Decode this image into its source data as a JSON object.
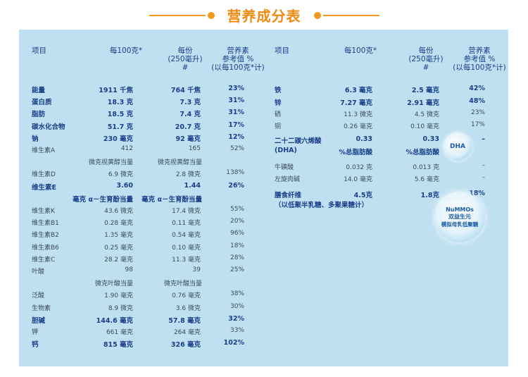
{
  "title": "营养成分表",
  "colors": {
    "accent": "#f39a1e",
    "panel": "#bfe0f0",
    "header_text": "#1a3f8a"
  },
  "left_headers": {
    "item": "项目",
    "per100": "每100克*",
    "per_serving": "每份\n(250毫升)\n#",
    "nrv": "营养素\n参考值 %\n(以每100克*计)"
  },
  "right_headers": {
    "item": "项目",
    "per100": "每100克*",
    "per_serving": "每份\n(250毫升)\n#",
    "nrv": "营养素\n参考值 %\n(以每100克*计)"
  },
  "left_rows": [
    {
      "name": "能量",
      "v100": "1911 千焦",
      "vs": "764 千焦",
      "nrv": "23%",
      "bold": true
    },
    {
      "name": "蛋白质",
      "v100": "18.3 克",
      "vs": "7.3 克",
      "nrv": "31%",
      "bold": true
    },
    {
      "name": "脂肪",
      "v100": "18.5 克",
      "vs": "7.4 克",
      "nrv": "31%",
      "bold": true
    },
    {
      "name": "碳水化合物",
      "v100": "51.7 克",
      "vs": "20.7 克",
      "nrv": "17%",
      "bold": true
    },
    {
      "name": "钠",
      "v100": "230 毫克",
      "vs": "92 毫克",
      "nrv": "12%",
      "bold": true
    },
    {
      "name": "维生素A",
      "v100": "412",
      "vs": "165",
      "nrv": "52%",
      "bold": false
    },
    {
      "name": "",
      "v100": "微克视黄醇当量",
      "vs": "微克视黄醇当量",
      "nrv": "",
      "bold": false
    },
    {
      "name": "维生素D",
      "v100": "6.9 微克",
      "vs": "2.8 微克",
      "nrv": "138%",
      "bold": false
    },
    {
      "name": "维生素E",
      "v100": "3.60",
      "vs": "1.44",
      "nrv": "26%",
      "bold": true
    },
    {
      "name": "",
      "v100": "毫克 α－生育酚当量",
      "vs": "毫克 α－生育酚当量",
      "nrv": "",
      "bold": true
    },
    {
      "name": "维生素K",
      "v100": "43.6 微克",
      "vs": "17.4 微克",
      "nrv": "55%",
      "bold": false
    },
    {
      "name": "维生素B1",
      "v100": "0.28 毫克",
      "vs": "0.11 毫克",
      "nrv": "20%",
      "bold": false
    },
    {
      "name": "维生素B2",
      "v100": "1.35 毫克",
      "vs": "0.54 毫克",
      "nrv": "96%",
      "bold": false
    },
    {
      "name": "维生素B6",
      "v100": "0.25 毫克",
      "vs": "0.10 毫克",
      "nrv": "18%",
      "bold": false
    },
    {
      "name": "维生素C",
      "v100": "28.2 毫克",
      "vs": "11.3 毫克",
      "nrv": "28%",
      "bold": false
    },
    {
      "name": "叶酸",
      "v100": "98",
      "vs": "39",
      "nrv": "25%",
      "bold": false
    },
    {
      "name": "",
      "v100": "微克叶酸当量",
      "vs": "微克叶酸当量",
      "nrv": "",
      "bold": false
    },
    {
      "name": "泛酸",
      "v100": "1.90 毫克",
      "vs": "0.76 毫克",
      "nrv": "38%",
      "bold": false
    },
    {
      "name": "生物素",
      "v100": "8.9 微克",
      "vs": "3.6 微克",
      "nrv": "30%",
      "bold": false
    },
    {
      "name": "胆碱",
      "v100": "144.6 毫克",
      "vs": "57.8 毫克",
      "nrv": "32%",
      "bold": true
    },
    {
      "name": "钾",
      "v100": "661 毫克",
      "vs": "264 毫克",
      "nrv": "33%",
      "bold": false
    },
    {
      "name": "钙",
      "v100": "815 毫克",
      "vs": "326 毫克",
      "nrv": "102%",
      "bold": true
    }
  ],
  "right_rows": [
    {
      "name": "铁",
      "v100": "6.3 毫克",
      "vs": "2.5 毫克",
      "nrv": "42%",
      "bold": true
    },
    {
      "name": "锌",
      "v100": "7.27 毫克",
      "vs": "2.91 毫克",
      "nrv": "48%",
      "bold": true
    },
    {
      "name": "硒",
      "v100": "11.3 微克",
      "vs": "4.5 微克",
      "nrv": "23%",
      "bold": false
    },
    {
      "name": "铜",
      "v100": "0.26 毫克",
      "vs": "0.10 毫克",
      "nrv": "17%",
      "bold": false
    },
    {
      "name": "二十二碳六烯酸",
      "v100": "0.33",
      "vs": "0.33",
      "nrv": "–",
      "bold": true
    },
    {
      "name": "(DHA)",
      "v100": "%总脂肪酸",
      "vs": "%总脂肪酸",
      "nrv": "",
      "bold": true
    },
    {
      "name": "牛磺酸",
      "v100": "0.032 克",
      "vs": "0.013 克",
      "nrv": "–",
      "bold": false
    },
    {
      "name": "左旋肉碱",
      "v100": "14.0 毫克",
      "vs": "5.6 毫克",
      "nrv": "–",
      "bold": false
    },
    {
      "name": "膳食纤维",
      "v100": "4.5克",
      "vs": "1.8克",
      "nrv": "18%",
      "bold": true
    },
    {
      "name": "（以低聚半乳糖、多聚果糖计）",
      "v100": "",
      "vs": "",
      "nrv": "",
      "bold": true
    }
  ],
  "badges": {
    "dha": "DHA",
    "nummos_1": "NuMMOs",
    "nummos_2": "双益生元",
    "nummos_3": "模拟母乳低聚糖"
  }
}
